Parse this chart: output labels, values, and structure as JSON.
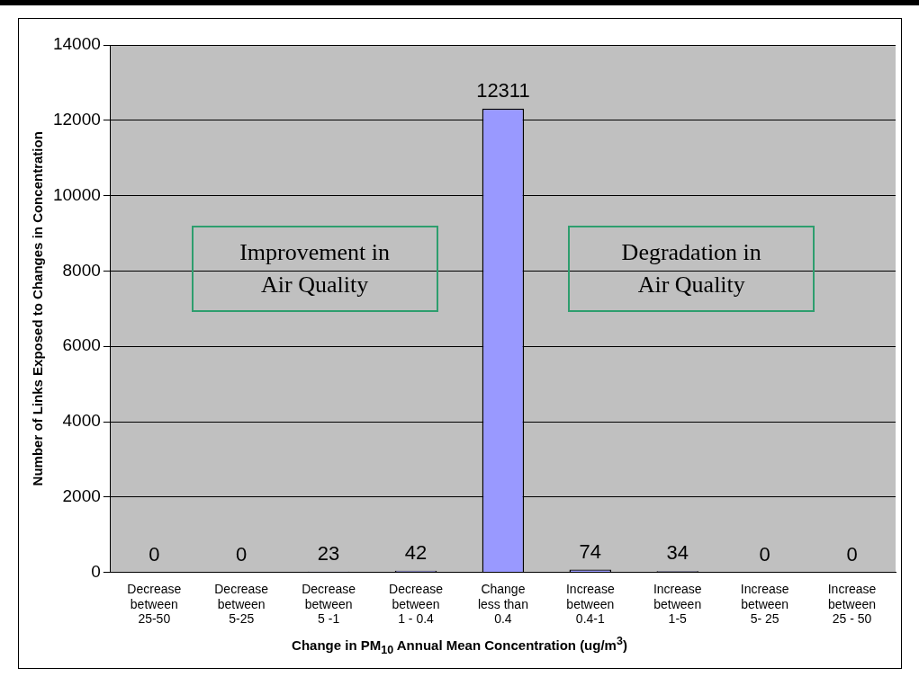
{
  "chart_data": {
    "type": "bar",
    "xlabel": "Change in PM$_{10}$ Annual Mean Concentration (ug/m$^{3}$)",
    "ylabel": "Number of Links Exposed to Changes in Concentration",
    "categories": [
      "Decrease\nbetween\n25-50",
      "Decrease\nbetween\n5-25",
      "Decrease\nbetween\n5 -1",
      "Decrease\nbetween\n1 - 0.4",
      "Change\nless than\n0.4",
      "Increase\nbetween\n0.4-1",
      "Increase\nbetween\n1-5",
      "Increase\nbetween\n5- 25",
      "Increase\nbetween\n25 - 50"
    ],
    "values": [
      0,
      0,
      23,
      42,
      12311,
      74,
      34,
      0,
      0
    ],
    "color": "#9999ff",
    "ylim": [
      0,
      14000
    ],
    "yticks": [
      0,
      2000,
      4000,
      6000,
      8000,
      10000,
      12000,
      14000
    ],
    "grid": "y",
    "data_labels": true,
    "legend": false,
    "annotations": [
      "Improvement in\nAir Quality",
      "Degradation in\nAir Quality"
    ]
  }
}
